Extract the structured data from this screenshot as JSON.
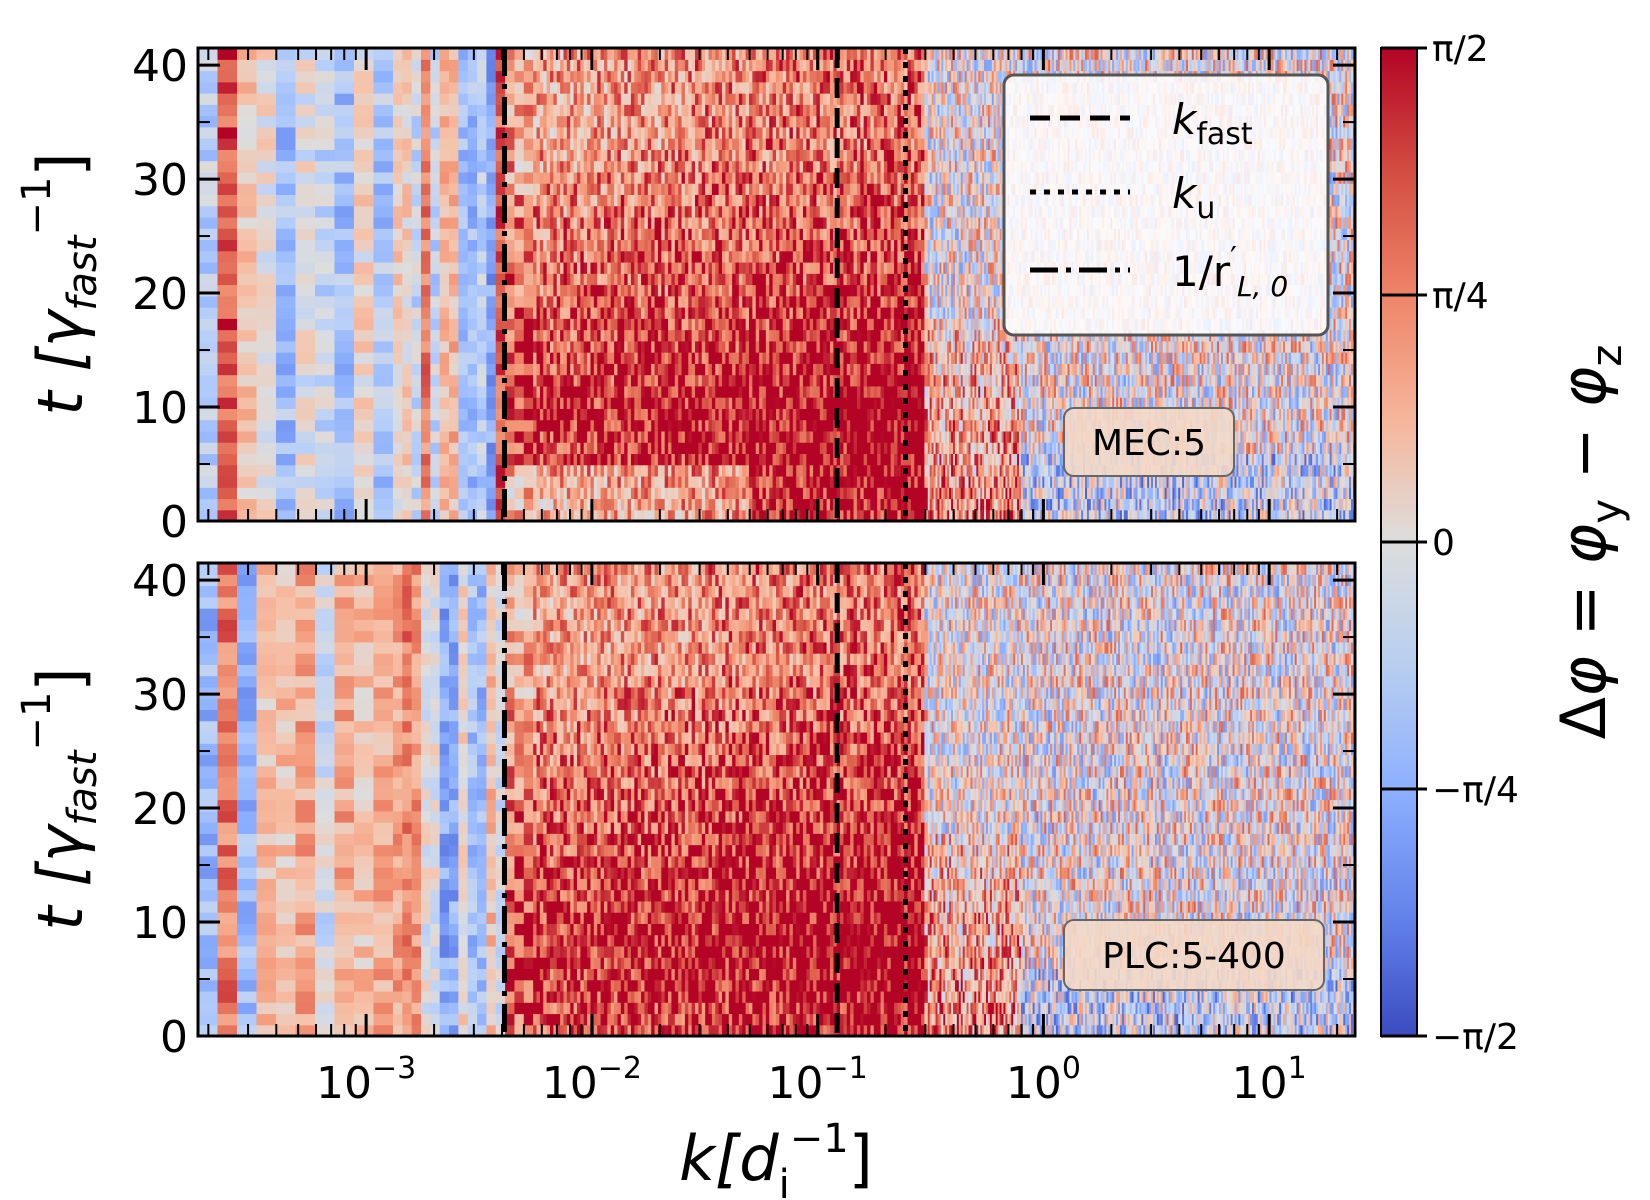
{
  "chart_data": {
    "type": "heatmap",
    "x_scale": "log",
    "xlim": [
      0.00018,
      24
    ],
    "ylim": [
      0,
      41.5
    ],
    "xlabel": "k[d_i^-1]",
    "ylabel": "t [γ_fast^-1]",
    "x_ticks": [
      {
        "value": 0.001,
        "label_base": "10",
        "label_exp": "−3"
      },
      {
        "value": 0.01,
        "label_base": "10",
        "label_exp": "−2"
      },
      {
        "value": 0.1,
        "label_base": "10",
        "label_exp": "−1"
      },
      {
        "value": 1,
        "label_base": "10",
        "label_exp": "0"
      },
      {
        "value": 10,
        "label_base": "10",
        "label_exp": "1"
      }
    ],
    "y_ticks": [
      {
        "value": 0,
        "label": "0"
      },
      {
        "value": 10,
        "label": "10"
      },
      {
        "value": 20,
        "label": "20"
      },
      {
        "value": 30,
        "label": "30"
      },
      {
        "value": 40,
        "label": "40"
      }
    ],
    "vertical_lines": [
      {
        "name": "k_fast",
        "k": 0.122,
        "style": "dashed"
      },
      {
        "name": "k_u",
        "k": 0.245,
        "style": "dotted"
      },
      {
        "name": "1/r_L0",
        "k": 0.0041,
        "style": "dashdot"
      }
    ],
    "panels": [
      {
        "label": "MEC:5",
        "show_legend": true,
        "seed": 11
      },
      {
        "label": "PLC:5-400",
        "show_legend": false,
        "seed": 29
      }
    ],
    "legend": {
      "position": "top-right",
      "entries": [
        {
          "style": "dashed",
          "text_main": "k",
          "text_sub": "fast"
        },
        {
          "style": "dotted",
          "text_main": "k",
          "text_sub": "u"
        },
        {
          "style": "dashdot",
          "text_main": "1/r",
          "text_sup": "′",
          "text_sub": "L, 0"
        }
      ]
    },
    "colorbar": {
      "colormap": "coolwarm",
      "range": [
        "−π/2",
        "π/2"
      ],
      "ticks": [
        "π/2",
        "π/4",
        "0",
        "−π/4",
        "−π/2"
      ],
      "title": "Δφ = φ_y − φ_z"
    },
    "colors": {
      "cold": "#3b4cc0",
      "neutral": "#dddddd",
      "warm": "#b40426"
    }
  }
}
